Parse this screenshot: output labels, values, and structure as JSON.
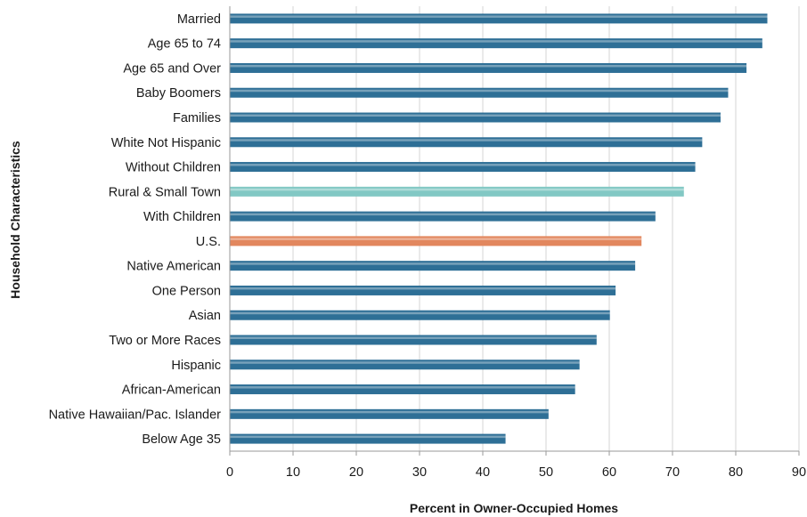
{
  "chart_data": {
    "type": "bar",
    "orientation": "horizontal",
    "xlabel": "Percent in Owner-Occupied Homes",
    "ylabel": "Household Characteristics",
    "xlim": [
      0,
      90
    ],
    "xticks": [
      0,
      10,
      20,
      30,
      40,
      50,
      60,
      70,
      80,
      90
    ],
    "grid": true,
    "categories": [
      "Married",
      "Age 65 to 74",
      "Age 65 and Over",
      "Baby Boomers",
      "Families",
      "White Not Hispanic",
      "Without Children",
      "Rural & Small Town",
      "With Children",
      "U.S.",
      "Native American",
      "One Person",
      "Asian",
      "Two or More Races",
      "Hispanic",
      "African-American",
      "Native Hawaiian/Pac. Islander",
      "Below Age 35"
    ],
    "values": [
      85,
      84.2,
      81.7,
      78.8,
      77.6,
      74.7,
      73.6,
      71.8,
      67.3,
      65.1,
      64.1,
      61,
      60.1,
      58,
      55.3,
      54.6,
      50.4,
      43.6
    ],
    "colors": {
      "default": "#2e6f96",
      "Rural & Small Town": "#82c8c4",
      "U.S.": "#e2875e"
    }
  }
}
